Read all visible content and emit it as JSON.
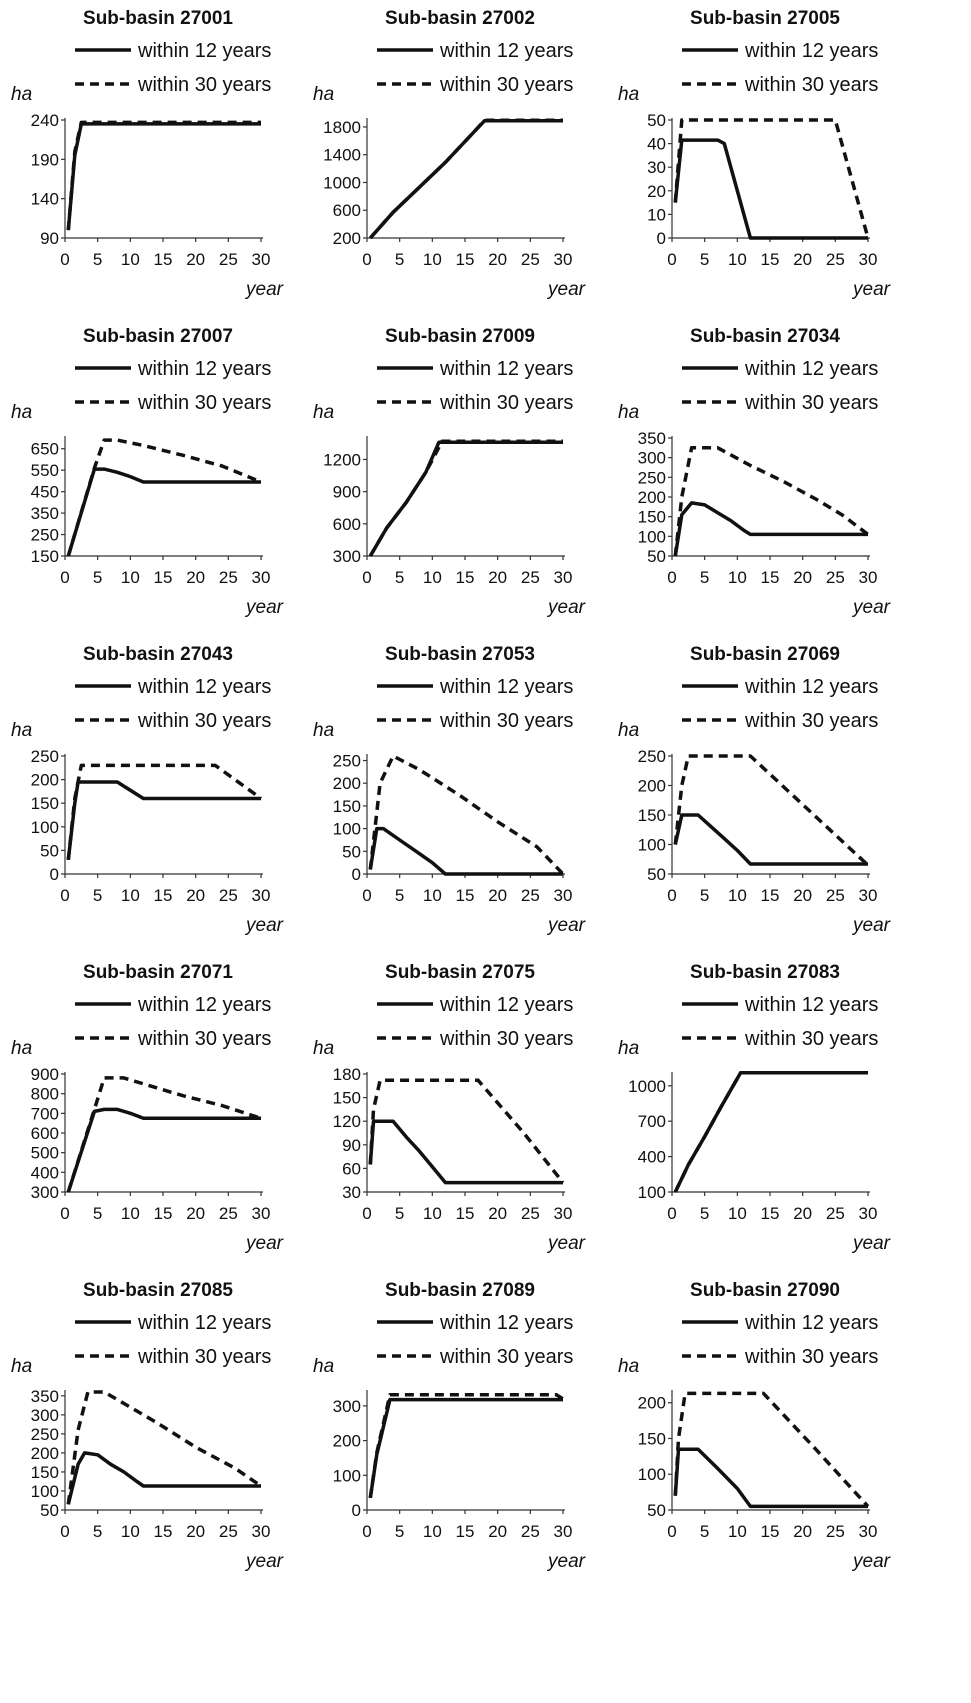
{
  "legend": {
    "solid": "within 12 years",
    "dashed": "within 30 years"
  },
  "colors": {
    "line": "#111111",
    "axis": "#333333",
    "background": "#ffffff"
  },
  "chart_data": [
    {
      "type": "line",
      "title": "Sub-basin 27001",
      "ylabel": "ha",
      "xlabel": "year",
      "xlim": [
        0,
        30
      ],
      "ylim": [
        90,
        240
      ],
      "xticks": [
        0,
        5,
        10,
        15,
        20,
        25,
        30
      ],
      "yticks": [
        90,
        140,
        190,
        240
      ],
      "series": [
        {
          "name": "within 12 years",
          "style": "solid",
          "x": [
            0.5,
            1.5,
            2.5,
            30
          ],
          "y": [
            100,
            195,
            235,
            235
          ]
        },
        {
          "name": "within 30 years",
          "style": "dashed",
          "x": [
            0.5,
            1.5,
            2.5,
            30
          ],
          "y": [
            100,
            200,
            237,
            237
          ]
        }
      ]
    },
    {
      "type": "line",
      "title": "Sub-basin 27002",
      "ylabel": "ha",
      "xlabel": "year",
      "xlim": [
        0,
        30
      ],
      "ylim": [
        200,
        1900
      ],
      "xticks": [
        0,
        5,
        10,
        15,
        20,
        25,
        30
      ],
      "yticks": [
        200,
        600,
        1000,
        1400,
        1800
      ],
      "series": [
        {
          "name": "within 12 years",
          "style": "solid",
          "x": [
            0.5,
            4,
            8,
            12,
            16,
            18,
            30
          ],
          "y": [
            200,
            570,
            930,
            1290,
            1690,
            1890,
            1890
          ]
        },
        {
          "name": "within 30 years",
          "style": "dashed",
          "x": [
            0.5,
            4,
            8,
            12,
            16,
            18,
            30
          ],
          "y": [
            200,
            570,
            930,
            1290,
            1690,
            1895,
            1895
          ]
        }
      ]
    },
    {
      "type": "line",
      "title": "Sub-basin 27005",
      "ylabel": "ha",
      "xlabel": "year",
      "xlim": [
        0,
        30
      ],
      "ylim": [
        0,
        50
      ],
      "xticks": [
        0,
        5,
        10,
        15,
        20,
        25,
        30
      ],
      "yticks": [
        0,
        10,
        20,
        30,
        40,
        50
      ],
      "series": [
        {
          "name": "within 12 years",
          "style": "solid",
          "x": [
            0.5,
            1.5,
            7,
            8,
            12,
            30
          ],
          "y": [
            15,
            41.5,
            41.5,
            40,
            0,
            0
          ]
        },
        {
          "name": "within 30 years",
          "style": "dashed",
          "x": [
            0.5,
            1.5,
            25,
            30
          ],
          "y": [
            15,
            50,
            50,
            0
          ]
        }
      ]
    },
    {
      "type": "line",
      "title": "Sub-basin 27007",
      "ylabel": "ha",
      "xlabel": "year",
      "xlim": [
        0,
        30
      ],
      "ylim": [
        150,
        700
      ],
      "xticks": [
        0,
        5,
        10,
        15,
        20,
        25,
        30
      ],
      "yticks": [
        150,
        250,
        350,
        450,
        550,
        650
      ],
      "series": [
        {
          "name": "within 12 years",
          "style": "solid",
          "x": [
            0.5,
            4.5,
            6,
            8,
            10,
            12,
            30
          ],
          "y": [
            150,
            555,
            555,
            540,
            520,
            495,
            495
          ]
        },
        {
          "name": "within 30 years",
          "style": "dashed",
          "x": [
            0.5,
            4.5,
            6,
            8,
            12,
            18,
            24,
            30
          ],
          "y": [
            150,
            560,
            690,
            690,
            665,
            620,
            570,
            495
          ]
        }
      ]
    },
    {
      "type": "line",
      "title": "Sub-basin 27009",
      "ylabel": "ha",
      "xlabel": "year",
      "xlim": [
        0,
        30
      ],
      "ylim": [
        300,
        1400
      ],
      "xticks": [
        0,
        5,
        10,
        15,
        20,
        25,
        30
      ],
      "yticks": [
        300,
        600,
        900,
        1200
      ],
      "series": [
        {
          "name": "within 12 years",
          "style": "solid",
          "x": [
            0.5,
            3,
            6,
            9,
            11,
            30
          ],
          "y": [
            300,
            560,
            800,
            1080,
            1360,
            1360
          ]
        },
        {
          "name": "within 30 years",
          "style": "dashed",
          "x": [
            0.5,
            3,
            6,
            9,
            11.5,
            30
          ],
          "y": [
            300,
            560,
            800,
            1080,
            1370,
            1370
          ]
        }
      ]
    },
    {
      "type": "line",
      "title": "Sub-basin 27034",
      "ylabel": "ha",
      "xlabel": "year",
      "xlim": [
        0,
        30
      ],
      "ylim": [
        50,
        350
      ],
      "xticks": [
        0,
        5,
        10,
        15,
        20,
        25,
        30
      ],
      "yticks": [
        50,
        100,
        150,
        200,
        250,
        300,
        350
      ],
      "series": [
        {
          "name": "within 12 years",
          "style": "solid",
          "x": [
            0.5,
            1.5,
            3,
            5,
            7,
            9,
            11,
            12,
            30
          ],
          "y": [
            50,
            155,
            185,
            180,
            160,
            140,
            115,
            105,
            105
          ]
        },
        {
          "name": "within 30 years",
          "style": "dashed",
          "x": [
            0.5,
            1.5,
            3,
            7,
            12,
            17,
            22,
            26,
            30
          ],
          "y": [
            50,
            200,
            325,
            325,
            280,
            240,
            195,
            155,
            105
          ]
        }
      ]
    },
    {
      "type": "line",
      "title": "Sub-basin 27043",
      "ylabel": "ha",
      "xlabel": "year",
      "xlim": [
        0,
        30
      ],
      "ylim": [
        0,
        250
      ],
      "xticks": [
        0,
        5,
        10,
        15,
        20,
        25,
        30
      ],
      "yticks": [
        0,
        50,
        100,
        150,
        200,
        250
      ],
      "series": [
        {
          "name": "within 12 years",
          "style": "solid",
          "x": [
            0.5,
            1.5,
            2,
            8,
            12,
            30
          ],
          "y": [
            30,
            150,
            195,
            195,
            160,
            160
          ]
        },
        {
          "name": "within 30 years",
          "style": "dashed",
          "x": [
            0.5,
            1.5,
            2.5,
            23,
            30
          ],
          "y": [
            30,
            160,
            230,
            230,
            160
          ]
        }
      ]
    },
    {
      "type": "line",
      "title": "Sub-basin 27053",
      "ylabel": "ha",
      "xlabel": "year",
      "xlim": [
        0,
        30
      ],
      "ylim": [
        0,
        260
      ],
      "xticks": [
        0,
        5,
        10,
        15,
        20,
        25,
        30
      ],
      "yticks": [
        0,
        50,
        100,
        150,
        200,
        250
      ],
      "series": [
        {
          "name": "within 12 years",
          "style": "solid",
          "x": [
            0.5,
            1.5,
            2.5,
            5,
            8,
            10,
            12,
            30
          ],
          "y": [
            10,
            100,
            100,
            75,
            45,
            25,
            0,
            0
          ]
        },
        {
          "name": "within 30 years",
          "style": "dashed",
          "x": [
            0.5,
            2,
            4,
            8,
            14,
            20,
            26,
            30
          ],
          "y": [
            10,
            200,
            260,
            230,
            175,
            115,
            60,
            0
          ]
        }
      ]
    },
    {
      "type": "line",
      "title": "Sub-basin 27069",
      "ylabel": "ha",
      "xlabel": "year",
      "xlim": [
        0,
        30
      ],
      "ylim": [
        50,
        250
      ],
      "xticks": [
        0,
        5,
        10,
        15,
        20,
        25,
        30
      ],
      "yticks": [
        50,
        100,
        150,
        200,
        250
      ],
      "series": [
        {
          "name": "within 12 years",
          "style": "solid",
          "x": [
            0.5,
            1.5,
            4,
            6,
            8,
            10,
            12,
            30
          ],
          "y": [
            100,
            150,
            150,
            130,
            110,
            90,
            67,
            67
          ]
        },
        {
          "name": "within 30 years",
          "style": "dashed",
          "x": [
            0.5,
            1.5,
            2.5,
            12,
            30
          ],
          "y": [
            100,
            200,
            250,
            250,
            65
          ]
        }
      ]
    },
    {
      "type": "line",
      "title": "Sub-basin 27071",
      "ylabel": "ha",
      "xlabel": "year",
      "xlim": [
        0,
        30
      ],
      "ylim": [
        300,
        900
      ],
      "xticks": [
        0,
        5,
        10,
        15,
        20,
        25,
        30
      ],
      "yticks": [
        300,
        400,
        500,
        600,
        700,
        800,
        900
      ],
      "series": [
        {
          "name": "within 12 years",
          "style": "solid",
          "x": [
            0.5,
            4.5,
            6,
            8,
            10,
            12,
            30
          ],
          "y": [
            300,
            710,
            720,
            720,
            700,
            675,
            675
          ]
        },
        {
          "name": "within 30 years",
          "style": "dashed",
          "x": [
            0.5,
            4.5,
            6,
            9,
            13,
            18,
            24,
            30
          ],
          "y": [
            300,
            720,
            880,
            880,
            840,
            790,
            740,
            675
          ]
        }
      ]
    },
    {
      "type": "line",
      "title": "Sub-basin 27075",
      "ylabel": "ha",
      "xlabel": "year",
      "xlim": [
        0,
        30
      ],
      "ylim": [
        30,
        180
      ],
      "xticks": [
        0,
        5,
        10,
        15,
        20,
        25,
        30
      ],
      "yticks": [
        30,
        60,
        90,
        120,
        150,
        180
      ],
      "series": [
        {
          "name": "within 12 years",
          "style": "solid",
          "x": [
            0.5,
            1,
            4,
            6,
            8,
            10,
            12,
            30
          ],
          "y": [
            65,
            120,
            120,
            100,
            82,
            62,
            42,
            42
          ]
        },
        {
          "name": "within 30 years",
          "style": "dashed",
          "x": [
            0.5,
            1,
            2,
            17,
            24,
            30
          ],
          "y": [
            65,
            135,
            172,
            172,
            105,
            42
          ]
        }
      ]
    },
    {
      "type": "line",
      "title": "Sub-basin 27083",
      "ylabel": "ha",
      "xlabel": "year",
      "xlim": [
        0,
        30
      ],
      "ylim": [
        100,
        1100
      ],
      "xticks": [
        0,
        5,
        10,
        15,
        20,
        25,
        30
      ],
      "yticks": [
        100,
        400,
        700,
        1000
      ],
      "series": [
        {
          "name": "within 12 years",
          "style": "solid",
          "x": [
            0.5,
            2.5,
            5,
            7.5,
            10.5,
            30
          ],
          "y": [
            100,
            330,
            570,
            820,
            1110,
            1110
          ]
        },
        {
          "name": "within 30 years",
          "style": "dashed",
          "x": [
            0.5,
            2.5,
            5,
            7.5,
            10.5,
            30
          ],
          "y": [
            100,
            330,
            570,
            820,
            1110,
            1110
          ]
        }
      ]
    },
    {
      "type": "line",
      "title": "Sub-basin 27085",
      "ylabel": "ha",
      "xlabel": "year",
      "xlim": [
        0,
        30
      ],
      "ylim": [
        50,
        360
      ],
      "xticks": [
        0,
        5,
        10,
        15,
        20,
        25,
        30
      ],
      "yticks": [
        50,
        100,
        150,
        200,
        250,
        300,
        350
      ],
      "series": [
        {
          "name": "within 12 years",
          "style": "solid",
          "x": [
            0.5,
            2,
            3,
            5,
            7,
            9,
            11,
            12,
            30
          ],
          "y": [
            65,
            170,
            200,
            195,
            170,
            150,
            125,
            113,
            113
          ]
        },
        {
          "name": "within 30 years",
          "style": "dashed",
          "x": [
            0.5,
            2,
            3.5,
            6,
            9,
            14,
            20,
            26,
            30
          ],
          "y": [
            65,
            260,
            360,
            360,
            330,
            280,
            215,
            160,
            113
          ]
        }
      ]
    },
    {
      "type": "line",
      "title": "Sub-basin 27089",
      "ylabel": "ha",
      "xlabel": "year",
      "xlim": [
        0,
        30
      ],
      "ylim": [
        0,
        340
      ],
      "xticks": [
        0,
        5,
        10,
        15,
        20,
        25,
        30
      ],
      "yticks": [
        0,
        100,
        200,
        300
      ],
      "series": [
        {
          "name": "within 12 years",
          "style": "solid",
          "x": [
            0.5,
            1.5,
            3.5,
            30
          ],
          "y": [
            35,
            160,
            318,
            318
          ]
        },
        {
          "name": "within 30 years",
          "style": "dashed",
          "x": [
            0.5,
            1.5,
            3.5,
            29,
            30
          ],
          "y": [
            35,
            165,
            332,
            332,
            320
          ]
        }
      ]
    },
    {
      "type": "line",
      "title": "Sub-basin 27090",
      "ylabel": "ha",
      "xlabel": "year",
      "xlim": [
        0,
        30
      ],
      "ylim": [
        50,
        215
      ],
      "xticks": [
        0,
        5,
        10,
        15,
        20,
        25,
        30
      ],
      "yticks": [
        50,
        100,
        150,
        200
      ],
      "series": [
        {
          "name": "within 12 years",
          "style": "solid",
          "x": [
            0.5,
            1,
            4,
            7,
            10,
            12,
            30
          ],
          "y": [
            70,
            135,
            135,
            108,
            80,
            55,
            55
          ]
        },
        {
          "name": "within 30 years",
          "style": "dashed",
          "x": [
            0.5,
            1,
            2,
            14,
            22,
            30
          ],
          "y": [
            70,
            150,
            213,
            213,
            135,
            55
          ]
        }
      ]
    }
  ]
}
